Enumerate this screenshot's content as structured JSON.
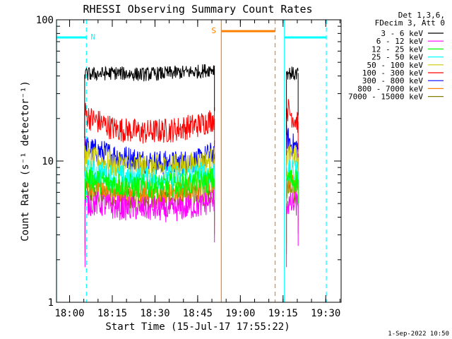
{
  "chart_data": {
    "type": "line",
    "title": "RHESSI Observing Summary Count Rates",
    "xlabel": "Start Time (15-Jul-17 17:55:22)",
    "ylabel": "Count Rate (s⁻¹ detector⁻¹)",
    "yscale": "log",
    "ylim": [
      1,
      100
    ],
    "xlim_minutes": [
      0,
      100
    ],
    "x_ticks": [
      {
        "label": "18:00",
        "minutes": 4.6
      },
      {
        "label": "18:15",
        "minutes": 19.6
      },
      {
        "label": "18:30",
        "minutes": 34.6
      },
      {
        "label": "18:45",
        "minutes": 49.6
      },
      {
        "label": "19:00",
        "minutes": 64.6
      },
      {
        "label": "19:15",
        "minutes": 79.6
      },
      {
        "label": "19:30",
        "minutes": 94.6
      }
    ],
    "y_ticks": [
      {
        "label": "1",
        "value": 1
      },
      {
        "label": "10",
        "value": 10
      },
      {
        "label": "100",
        "value": 100
      }
    ],
    "legend_placement": "top-right",
    "legend_header": [
      "Det 1,3,6,",
      "FDecim 3, Att 0"
    ],
    "series": [
      {
        "name": "3 - 6 keV",
        "color": "#000000",
        "segments": [
          {
            "x": [
              9.9,
              10.5,
              20,
              30,
              40,
              50,
              55.5
            ],
            "y": [
              41,
              41,
              42,
              41,
              42,
              43,
              45
            ]
          },
          {
            "x": [
              80.8,
              81.5,
              82.5,
              83.5,
              84.9
            ],
            "y": [
              43,
              42,
              42,
              41,
              42
            ]
          }
        ]
      },
      {
        "name": "6 - 12 keV",
        "color": "#ff00ff",
        "segments": [
          {
            "x": [
              10,
              15,
              20,
              30,
              40,
              50,
              55.5
            ],
            "y": [
              5,
              5,
              4.7,
              4.6,
              4.5,
              4.8,
              5.3
            ]
          },
          {
            "x": [
              80.8,
              82.5,
              84.9
            ],
            "y": [
              5,
              4.9,
              5
            ]
          }
        ]
      },
      {
        "name": "12 - 25 keV",
        "color": "#00ff00",
        "segments": [
          {
            "x": [
              10,
              15,
              20,
              30,
              40,
              50,
              55.5
            ],
            "y": [
              7.5,
              7.2,
              6.9,
              6.6,
              6.7,
              7,
              7.4
            ]
          },
          {
            "x": [
              80.8,
              82.5,
              84.9
            ],
            "y": [
              7.5,
              7.3,
              7.4
            ]
          }
        ]
      },
      {
        "name": "25 - 50 keV",
        "color": "#00ffff",
        "segments": [
          {
            "x": [
              10,
              15,
              20,
              30,
              40,
              50,
              55.5
            ],
            "y": [
              8.5,
              8.2,
              7.8,
              7.5,
              7.6,
              8,
              8.4
            ]
          },
          {
            "x": [
              80.8,
              82.5,
              84.9
            ],
            "y": [
              8.5,
              8.3,
              8.4
            ]
          }
        ]
      },
      {
        "name": "50 - 100 keV",
        "color": "#cccc00",
        "segments": [
          {
            "x": [
              10,
              15,
              20,
              30,
              40,
              50,
              55.5
            ],
            "y": [
              10.5,
              10,
              9.4,
              9,
              9.1,
              9.6,
              10.3
            ]
          },
          {
            "x": [
              80.8,
              82.5,
              84.9
            ],
            "y": [
              11,
              10.5,
              10.6
            ]
          }
        ]
      },
      {
        "name": "100 - 300 keV",
        "color": "#ff0000",
        "segments": [
          {
            "x": [
              9.9,
              12,
              20,
              30,
              40,
              50,
              55.5
            ],
            "y": [
              22,
              20,
              17,
              16,
              16.5,
              18,
              20
            ]
          },
          {
            "x": [
              80.8,
              82,
              83.5,
              84.9
            ],
            "y": [
              24,
              22,
              20,
              19
            ]
          }
        ]
      },
      {
        "name": "300 - 800 keV",
        "color": "#0000ff",
        "segments": [
          {
            "x": [
              10,
              12,
              20,
              30,
              40,
              50,
              55.5
            ],
            "y": [
              12.5,
              12,
              11,
              10,
              9.6,
              10,
              11.5
            ]
          },
          {
            "x": [
              80.8,
              82.5,
              84.9
            ],
            "y": [
              15,
              13,
              12.5
            ]
          }
        ]
      },
      {
        "name": "800 - 7000 keV",
        "color": "#ff8000",
        "segments": [
          {
            "x": [
              10,
              15,
              20,
              30,
              40,
              50,
              55.5
            ],
            "y": [
              7,
              6.8,
              6.3,
              6,
              6.1,
              6.3,
              6.8
            ]
          },
          {
            "x": [
              80.8,
              82.5,
              84.9
            ],
            "y": [
              7.2,
              7,
              7.1
            ]
          }
        ]
      },
      {
        "name": "7000 - 15000 keV",
        "color": "#808000",
        "segments": [
          {
            "x": [
              10,
              15,
              20,
              30,
              40,
              50,
              55.5
            ],
            "y": [
              6,
              5.9,
              5.6,
              5.4,
              5.5,
              5.7,
              6
            ]
          },
          {
            "x": [
              80.8,
              82.5,
              84.9
            ],
            "y": [
              6.2,
              6,
              6.1
            ]
          }
        ]
      }
    ],
    "annotations": {
      "night_flags": {
        "label": "N",
        "color": "#00ffff",
        "level": 75,
        "intervals": [
          [
            0,
            10.5
          ],
          [
            80.1,
            94.8
          ]
        ],
        "solid_lines": [
          0,
          80.1
        ],
        "dashed_lines": [
          10.5,
          94.8
        ]
      },
      "saa_flags": {
        "label": "S",
        "color": "#ff8000",
        "level": 83,
        "intervals": [
          [
            57.9,
            76.8
          ]
        ],
        "solid_lines": [
          57.9
        ],
        "dashed_lines": [
          76.8
        ]
      }
    },
    "footer_date": "1-Sep-2022 10:50"
  }
}
